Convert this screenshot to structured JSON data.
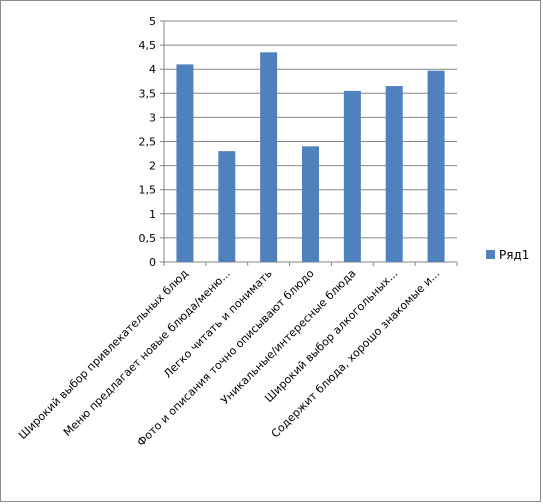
{
  "chart_data": {
    "type": "bar",
    "categories": [
      "Широкий выбор привлекательных блюд",
      "Меню предлагает новые блюда/меню...",
      "Легко читать и понимать",
      "Фото и описания точно описывают блюдо",
      "Уникальные/интересные блюда",
      "Широкий выбор алкогольных...",
      "Содержит блюда, хорошо знакомые и..."
    ],
    "series": [
      {
        "name": "Ряд1",
        "values": [
          4.1,
          2.3,
          4.35,
          2.4,
          3.55,
          3.65,
          3.97
        ],
        "color": "#4f81bd"
      }
    ],
    "ylim": [
      0,
      5
    ],
    "yticks": [
      "0",
      "0,5",
      "1",
      "1,5",
      "2",
      "2,5",
      "3",
      "3,5",
      "4",
      "4,5",
      "5"
    ],
    "grid": true,
    "legend_position": "right"
  }
}
